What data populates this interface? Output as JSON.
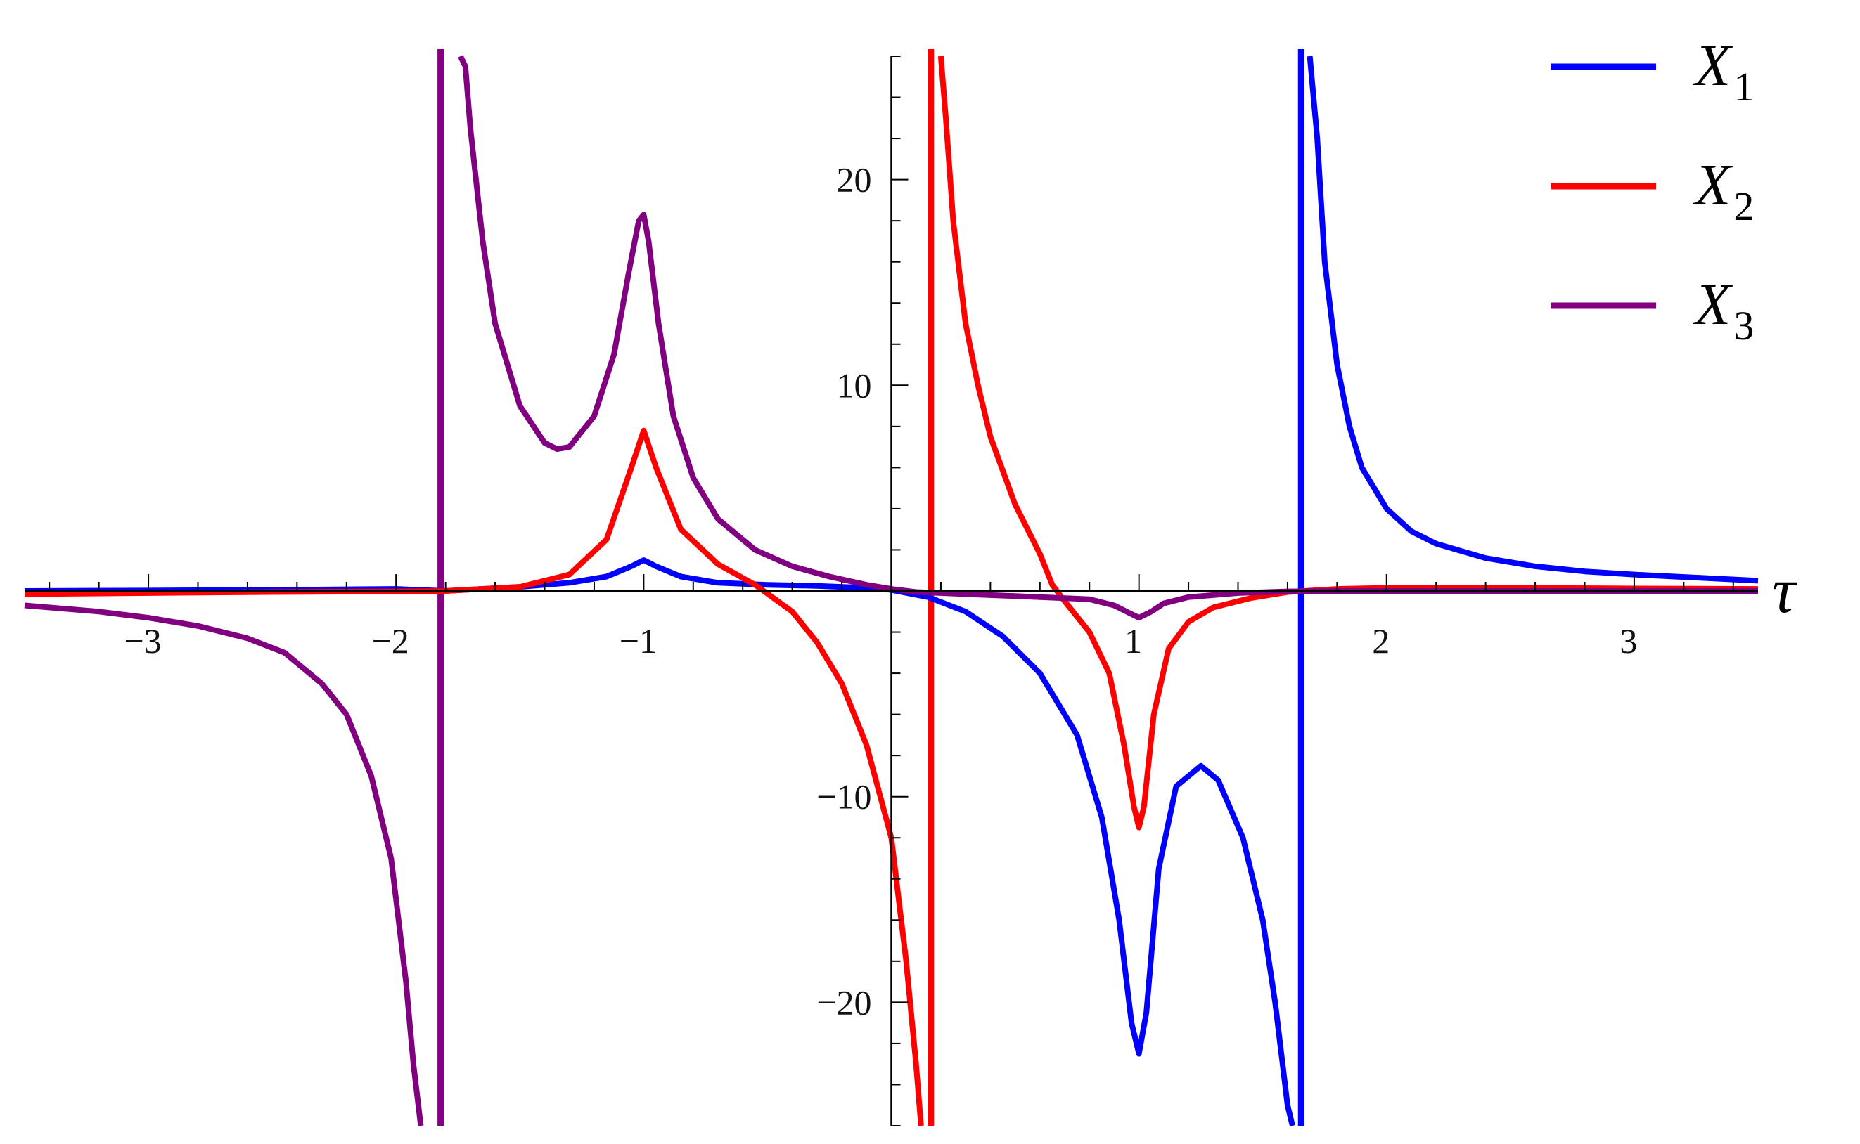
{
  "chart_data": {
    "type": "line",
    "title": "",
    "xlabel": "τ",
    "ylabel": "",
    "xlim": [
      -3.5,
      3.5
    ],
    "ylim": [
      -26,
      26
    ],
    "grid": false,
    "legend_position": "top-right",
    "x_ticks": [
      {
        "value": -3,
        "label": "−3"
      },
      {
        "value": -2,
        "label": "−2"
      },
      {
        "value": -1,
        "label": "−1"
      },
      {
        "value": 1,
        "label": "1"
      },
      {
        "value": 2,
        "label": "2"
      },
      {
        "value": 3,
        "label": "3"
      }
    ],
    "y_ticks": [
      {
        "value": -20,
        "label": "−20"
      },
      {
        "value": -10,
        "label": "−10"
      },
      {
        "value": 10,
        "label": "10"
      },
      {
        "value": 20,
        "label": "20"
      }
    ],
    "series": [
      {
        "name": "X",
        "subscript": "1",
        "color": "#0000ff",
        "segments": [
          {
            "x": [
              -3.5,
              -3.0,
              -2.5,
              -2.0,
              -1.8,
              -1.5,
              -1.3,
              -1.15,
              -1.05,
              -1.0,
              -0.95,
              -0.85,
              -0.7,
              -0.5,
              -0.3,
              -0.1,
              0.0,
              0.15,
              0.3,
              0.45,
              0.6,
              0.75,
              0.85,
              0.92,
              0.97,
              1.0,
              1.03,
              1.08,
              1.15,
              1.25,
              1.32,
              1.42,
              1.5,
              1.55,
              1.58,
              1.6,
              1.62
            ],
            "y": [
              0.0,
              0.02,
              0.05,
              0.1,
              0.0,
              0.2,
              0.4,
              0.7,
              1.2,
              1.5,
              1.2,
              0.7,
              0.4,
              0.3,
              0.25,
              0.15,
              0.05,
              -0.3,
              -1.0,
              -2.2,
              -4.0,
              -7.0,
              -11.0,
              -16.0,
              -21.0,
              -22.5,
              -20.5,
              -13.5,
              -9.5,
              -8.5,
              -9.2,
              -12.0,
              -16.0,
              -20.0,
              -23.0,
              -25.0,
              -27.0
            ]
          },
          {
            "x": [
              1.69,
              1.72,
              1.75,
              1.8,
              1.85,
              1.9,
              2.0,
              2.1,
              2.2,
              2.4,
              2.6,
              2.8,
              3.0,
              3.25,
              3.5
            ],
            "y": [
              27.0,
              22.0,
              16.0,
              11.0,
              8.0,
              6.0,
              4.0,
              2.9,
              2.3,
              1.6,
              1.2,
              0.95,
              0.8,
              0.65,
              0.5
            ]
          }
        ]
      },
      {
        "name": "X",
        "subscript": "2",
        "color": "#ff0000",
        "segments": [
          {
            "x": [
              -3.5,
              -3.0,
              -2.5,
              -2.0,
              -1.8,
              -1.5,
              -1.3,
              -1.15,
              -1.05,
              -1.0,
              -0.95,
              -0.85,
              -0.7,
              -0.55,
              -0.4,
              -0.3,
              -0.2,
              -0.1,
              0.0,
              0.06,
              0.1,
              0.12
            ],
            "y": [
              -0.15,
              -0.1,
              -0.05,
              -0.02,
              0.0,
              0.2,
              0.8,
              2.5,
              6.0,
              7.8,
              6.0,
              3.0,
              1.3,
              0.3,
              -1.0,
              -2.5,
              -4.5,
              -7.5,
              -12.0,
              -18.0,
              -23.0,
              -27.0
            ]
          },
          {
            "x": [
              0.2,
              0.22,
              0.25,
              0.3,
              0.35,
              0.4,
              0.5,
              0.6,
              0.65,
              0.7,
              0.8,
              0.88,
              0.94,
              0.98,
              1.0,
              1.02,
              1.06,
              1.12,
              1.2,
              1.3,
              1.45,
              1.6,
              1.8,
              2.0,
              2.5,
              3.0,
              3.5
            ],
            "y": [
              27.0,
              23.0,
              18.0,
              13.0,
              10.0,
              7.5,
              4.2,
              1.8,
              0.3,
              -0.5,
              -2.0,
              -4.0,
              -7.5,
              -10.5,
              -11.5,
              -10.5,
              -6.0,
              -2.8,
              -1.5,
              -0.8,
              -0.35,
              -0.05,
              0.1,
              0.15,
              0.15,
              0.12,
              0.1
            ]
          }
        ]
      },
      {
        "name": "X",
        "subscript": "3",
        "color": "#800080",
        "segments": [
          {
            "x": [
              -3.5,
              -3.2,
              -3.0,
              -2.8,
              -2.6,
              -2.45,
              -2.3,
              -2.2,
              -2.1,
              -2.02,
              -1.96,
              -1.93,
              -1.9
            ],
            "y": [
              -0.7,
              -1.0,
              -1.3,
              -1.7,
              -2.3,
              -3.0,
              -4.5,
              -6.0,
              -9.0,
              -13.0,
              -19.0,
              -23.0,
              -27.0
            ]
          },
          {
            "x": [
              -1.74,
              -1.72,
              -1.7,
              -1.65,
              -1.6,
              -1.5,
              -1.4,
              -1.35,
              -1.3,
              -1.2,
              -1.12,
              -1.06,
              -1.02,
              -1.0,
              -0.98,
              -0.94,
              -0.88,
              -0.8,
              -0.7,
              -0.55,
              -0.4,
              -0.25,
              -0.1,
              0.0,
              0.1,
              0.2,
              0.3,
              0.4,
              0.5,
              0.6,
              0.7,
              0.8,
              0.9,
              0.95,
              1.0,
              1.05,
              1.1,
              1.2,
              1.4,
              1.6,
              1.8,
              2.0,
              2.5,
              3.0,
              3.5
            ],
            "y": [
              27.0,
              25.5,
              22.5,
              17.0,
              13.0,
              9.0,
              7.2,
              6.9,
              7.0,
              8.5,
              11.5,
              15.5,
              18.0,
              18.3,
              17.0,
              13.0,
              8.5,
              5.5,
              3.5,
              2.0,
              1.2,
              0.7,
              0.3,
              0.1,
              -0.05,
              -0.1,
              -0.15,
              -0.2,
              -0.25,
              -0.3,
              -0.35,
              -0.4,
              -0.7,
              -1.0,
              -1.3,
              -1.0,
              -0.6,
              -0.3,
              -0.1,
              -0.02,
              0.0,
              0.0,
              0.0,
              0.0,
              0.0
            ]
          }
        ]
      }
    ],
    "asymptotes": [
      {
        "x": -1.82,
        "color": "#800080"
      },
      {
        "x": 0.16,
        "color": "#ff0000"
      },
      {
        "x": 1.655,
        "color": "#0000ff"
      }
    ]
  }
}
